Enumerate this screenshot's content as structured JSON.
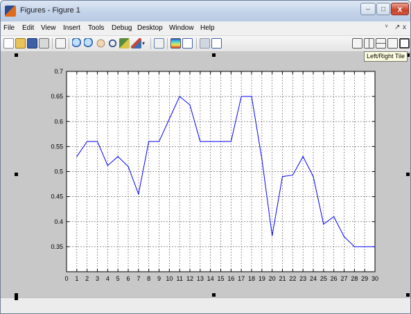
{
  "window": {
    "title": "Figures - Figure 1",
    "minimize_glyph": "–",
    "maximize_glyph": "□",
    "close_glyph": "x"
  },
  "menu": {
    "items": [
      "File",
      "Edit",
      "View",
      "Insert",
      "Tools",
      "Debug",
      "Desktop",
      "Window",
      "Help"
    ],
    "right_glyphs": [
      "ᵛ",
      "↗",
      "x"
    ]
  },
  "toolbar": {
    "left_icons": [
      "new-figure-icon",
      "open-file-icon",
      "save-icon",
      "print-icon",
      "edit-plot-icon",
      "zoom-in-icon",
      "zoom-out-icon",
      "pan-icon",
      "rotate-3d-icon",
      "data-cursor-icon",
      "brush-icon",
      "dropdown-arrow-icon",
      "link-plot-icon",
      "insert-colorbar-icon",
      "insert-legend-icon",
      "hide-plot-tools-icon",
      "show-plot-tools-icon"
    ],
    "right_icons": [
      "tile-grid-icon",
      "left-right-tile-icon",
      "top-bottom-tile-icon",
      "float-icon",
      "maximize-tile-icon"
    ],
    "tooltip": "Left/Right Tile"
  },
  "chart_data": {
    "type": "line",
    "x": [
      1,
      2,
      3,
      4,
      5,
      6,
      7,
      8,
      9,
      10,
      11,
      12,
      13,
      14,
      15,
      16,
      17,
      18,
      19,
      20,
      21,
      22,
      23,
      24,
      25,
      26,
      27,
      28,
      29,
      30
    ],
    "series": [
      {
        "values": [
          0.53,
          0.56,
          0.56,
          0.512,
          0.53,
          0.51,
          0.455,
          0.56,
          0.56,
          0.605,
          0.65,
          0.633,
          0.56,
          0.56,
          0.56,
          0.56,
          0.65,
          0.65,
          0.525,
          0.372,
          0.49,
          0.493,
          0.53,
          0.49,
          0.395,
          0.41,
          0.37,
          0.35,
          0.35,
          0.35
        ],
        "color": "#0000ff"
      }
    ],
    "xlim": [
      0,
      30
    ],
    "ylim": [
      0.3,
      0.7
    ],
    "xticks": [
      "0",
      "1",
      "2",
      "3",
      "4",
      "5",
      "6",
      "7",
      "8",
      "9",
      "10",
      "11",
      "12",
      "13",
      "14",
      "15",
      "16",
      "17",
      "18",
      "19",
      "20",
      "21",
      "22",
      "23",
      "24",
      "25",
      "26",
      "27",
      "28",
      "29",
      "30"
    ],
    "yticks": [
      "0.35",
      "0.4",
      "0.45",
      "0.5",
      "0.55",
      "0.6",
      "0.65",
      "0.7"
    ],
    "grid": true
  }
}
